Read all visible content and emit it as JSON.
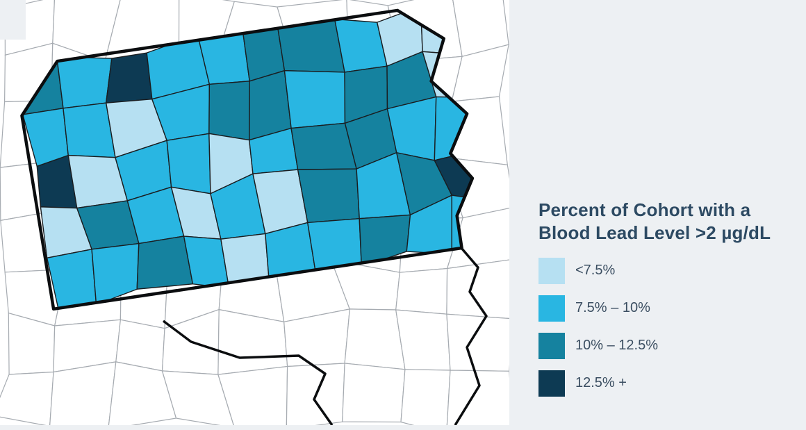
{
  "theme": {
    "panel_bg": "#edf0f3",
    "map_bg": "#ffffff",
    "title_color": "#2d4a63",
    "label_color": "#3b4e61"
  },
  "legend": {
    "title_line1": "Percent of Cohort with a",
    "title_line2": "Blood Lead Level >2 µg/dL",
    "items": [
      {
        "label": "<7.5%",
        "color_key": "lt"
      },
      {
        "label": "7.5% – 10%",
        "color_key": "md"
      },
      {
        "label": "10% – 12.5%",
        "color_key": "tl"
      },
      {
        "label": "12.5% +",
        "color_key": "dk"
      }
    ]
  },
  "map": {
    "colors": {
      "lt": "#b6e0f2",
      "md": "#29b6e2",
      "tl": "#15829f",
      "dk": "#0d3a53"
    },
    "state_border_color": "#0b0d0f",
    "county_border_color": "#1a1d20",
    "neighbor_border_color": "#a6abb1",
    "categories_grid": [
      [
        "tl",
        "md",
        "dk",
        "md",
        "md",
        "tl",
        "tl",
        "md",
        "lt",
        "lt"
      ],
      [
        "md",
        "md",
        "lt",
        "md",
        "tl",
        "tl",
        "md",
        "tl",
        "tl",
        "lt"
      ],
      [
        "dk",
        "lt",
        "md",
        "md",
        "lt",
        "md",
        "tl",
        "tl",
        "md",
        "md"
      ],
      [
        "lt",
        "tl",
        "md",
        "lt",
        "md",
        "lt",
        "tl",
        "md",
        "tl",
        "dk"
      ],
      [
        "md",
        "md",
        "tl",
        "md",
        "lt",
        "md",
        "md",
        "tl",
        "md",
        "md"
      ]
    ]
  }
}
